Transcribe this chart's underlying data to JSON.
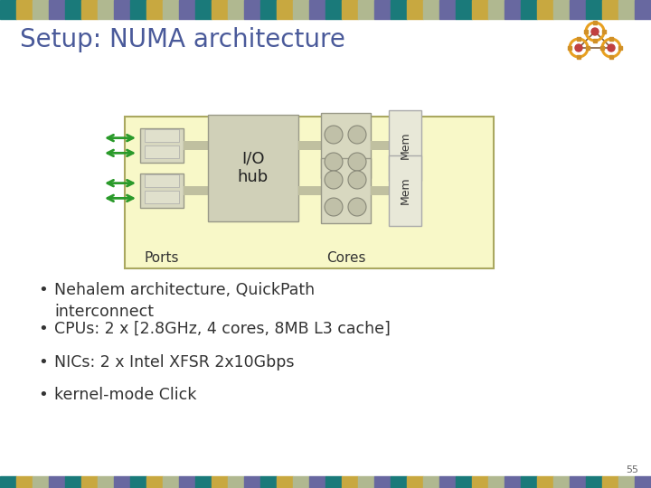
{
  "title": "Setup: NUMA architecture",
  "title_color": "#4a5a9a",
  "title_fontsize": 20,
  "bg_color": "#ffffff",
  "stripe_colors_cycle": [
    "#1a7a7a",
    "#c8a840",
    "#b0b890",
    "#6868a0"
  ],
  "bullet_points": [
    "Nehalem architecture, QuickPath\ninterconnect",
    "CPUs: 2 x [2.8GHz, 4 cores, 8MB L3 cache]",
    "NICs: 2 x Intel XFSR 2x10Gbps",
    "kernel-mode Click"
  ],
  "bullet_fontsize": 12.5,
  "page_number": "55",
  "box_bg": "#f8f8c8",
  "box_border": "#aaa860",
  "port_box_color": "#d8d8c0",
  "iohub_color": "#d0d0b8",
  "core_box_color": "#d8d8c0",
  "core_circle_color": "#c0c0a8",
  "mem_color": "#e8e8d8",
  "mem_border": "#aaaaaa",
  "arrow_color": "#2a9a2a",
  "connector_color": "#c0c0a0"
}
